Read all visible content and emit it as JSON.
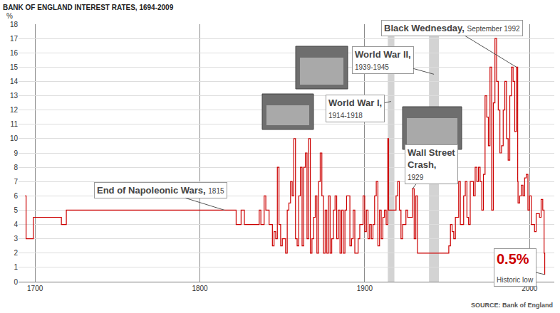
{
  "chart_data": {
    "type": "line",
    "title": "BANK OF ENGLAND INTEREST RATES, 1694-2009",
    "ylabel": "%",
    "source": "SOURCE: Bank of England",
    "x": [
      1694,
      1694.6,
      1699,
      1716,
      1719,
      1822,
      1825,
      1827,
      1836,
      1837,
      1839,
      1840,
      1841,
      1842,
      1844,
      1845,
      1846,
      1847,
      1848,
      1849,
      1850,
      1852,
      1853,
      1854,
      1855,
      1856,
      1857,
      1858,
      1859,
      1860,
      1861,
      1862,
      1863,
      1864,
      1865,
      1866,
      1867,
      1868,
      1869,
      1870,
      1871,
      1872,
      1873,
      1874,
      1875,
      1876,
      1877,
      1878,
      1879,
      1880,
      1881,
      1882,
      1883,
      1884,
      1885,
      1886,
      1887,
      1888,
      1889,
      1890,
      1891,
      1892,
      1893,
      1894,
      1896,
      1897,
      1898,
      1899,
      1900,
      1901,
      1902,
      1903,
      1904,
      1905,
      1906,
      1907,
      1908,
      1909,
      1910,
      1911,
      1912,
      1913,
      1914,
      1914.5,
      1919,
      1920,
      1921,
      1922,
      1923,
      1925,
      1926,
      1929,
      1930,
      1931,
      1932,
      1951,
      1952,
      1953,
      1954,
      1955,
      1957,
      1958,
      1960,
      1961,
      1962,
      1963,
      1964,
      1966,
      1967,
      1968,
      1969,
      1970,
      1971,
      1972,
      1973,
      1974,
      1975,
      1976,
      1977,
      1978,
      1979,
      1980,
      1981,
      1982,
      1983,
      1984,
      1985,
      1986,
      1987,
      1988,
      1989,
      1990,
      1991,
      1992,
      1992.8,
      1993,
      1994,
      1995,
      1996,
      1997,
      1998,
      1999,
      2000,
      2001,
      2002,
      2003,
      2004,
      2006,
      2007,
      2008,
      2008.8,
      2009.2
    ],
    "values": [
      6,
      3,
      4.5,
      4,
      5,
      4,
      5,
      4,
      5,
      4,
      6,
      5,
      5,
      4,
      2.5,
      3.5,
      3,
      8,
      4,
      2.5,
      3,
      2,
      5,
      5.5,
      7,
      6,
      10,
      3,
      2.5,
      6,
      8,
      2.5,
      8,
      9,
      3,
      10,
      2,
      3,
      4.5,
      6,
      2,
      7,
      9,
      6,
      2,
      5,
      2,
      6,
      2,
      3,
      5,
      6,
      3,
      5,
      2,
      5,
      2,
      5,
      6,
      6,
      2.5,
      3,
      5,
      2,
      3,
      4,
      4,
      6,
      3.5,
      5,
      3,
      4,
      3,
      4,
      6,
      7,
      2.5,
      5,
      3,
      4.5,
      5,
      4,
      10,
      5,
      6,
      7,
      5,
      3,
      4,
      5,
      4.5,
      6.5,
      3,
      6,
      2,
      2.5,
      4,
      3.5,
      3,
      4.5,
      7,
      4,
      6,
      7,
      4.5,
      4,
      7,
      6,
      8,
      7,
      8,
      7,
      5,
      7.5,
      13,
      11.5,
      9.5,
      15,
      5,
      12.5,
      17,
      14,
      12,
      9,
      9.5,
      12,
      14,
      10,
      8.5,
      13,
      15,
      14,
      10.5,
      15,
      7,
      5.5,
      6,
      6.75,
      6,
      7.25,
      7.5,
      5,
      6,
      4,
      4,
      3.5,
      4.75,
      4.5,
      5.75,
      5,
      2,
      0.5
    ],
    "color": "#cc0000",
    "line_style": "step",
    "xlim": [
      1690,
      2015
    ],
    "xticks": [
      1700,
      1800,
      1900,
      2000
    ],
    "ylim": [
      0,
      18
    ],
    "yticks": [
      0,
      1,
      2,
      3,
      4,
      5,
      6,
      7,
      8,
      9,
      10,
      11,
      12,
      13,
      14,
      15,
      16,
      17,
      18
    ],
    "grid": true,
    "periods": [
      {
        "start": 1914,
        "end": 1918
      },
      {
        "start": 1939,
        "end": 1945
      }
    ],
    "annotations": [
      {
        "label": "End of Napoleonic Wars,",
        "date": "1815",
        "x": 1815,
        "y": 5
      },
      {
        "label": "World War I,",
        "date": "1914-1918",
        "x": 1916,
        "y": 12.6
      },
      {
        "label": "World War II,",
        "date": "1939-1945",
        "x": 1942,
        "y": 14.5
      },
      {
        "label": "Wall Street Crash,",
        "date": "1929",
        "x": 1929,
        "y": 6.5
      },
      {
        "label": "Black Wednesday,",
        "date": "September 1992",
        "x": 1992,
        "y": 15
      },
      {
        "label": "0.5%",
        "date": "Historic low",
        "x": 2009.2,
        "y": 0.5,
        "color": "#cc0000"
      }
    ]
  }
}
